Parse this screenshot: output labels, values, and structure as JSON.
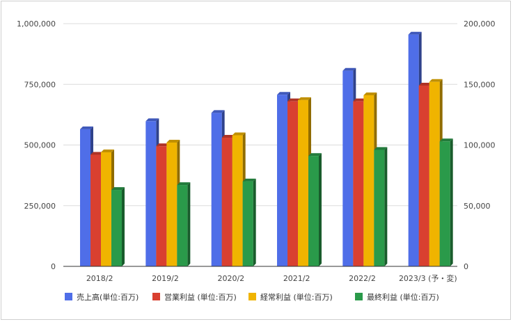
{
  "chart_data": {
    "type": "bar",
    "categories": [
      "2018/2",
      "2019/2",
      "2020/2",
      "2021/2",
      "2022/2",
      "2023/3 (予・変)"
    ],
    "series": [
      {
        "name": "売上高(単位:百万)",
        "axis": "left",
        "color": "#4f6ee8",
        "values": [
          565000,
          598000,
          632000,
          707000,
          806000,
          955000
        ]
      },
      {
        "name": "営業利益 (単位:百万)",
        "axis": "right",
        "color": "#d94030",
        "values": [
          92000,
          99000,
          106000,
          136000,
          136000,
          149000
        ]
      },
      {
        "name": "経常利益 (単位:百万)",
        "axis": "right",
        "color": "#f0b400",
        "values": [
          94000,
          102000,
          108000,
          137000,
          141000,
          152000
        ]
      },
      {
        "name": "最終利益 (単位:百万)",
        "axis": "right",
        "color": "#2a9a4a",
        "values": [
          63000,
          67000,
          70000,
          91000,
          96000,
          103000
        ]
      }
    ],
    "left_axis": {
      "min": 0,
      "max": 1000000,
      "ticks": [
        "0",
        "250,000",
        "500,000",
        "750,000",
        "1,000,000"
      ]
    },
    "right_axis": {
      "min": 0,
      "max": 200000,
      "ticks": [
        "0",
        "50,000",
        "100,000",
        "150,000",
        "200,000"
      ]
    },
    "grid": true,
    "legend_position": "bottom",
    "style": "3d-bars"
  }
}
